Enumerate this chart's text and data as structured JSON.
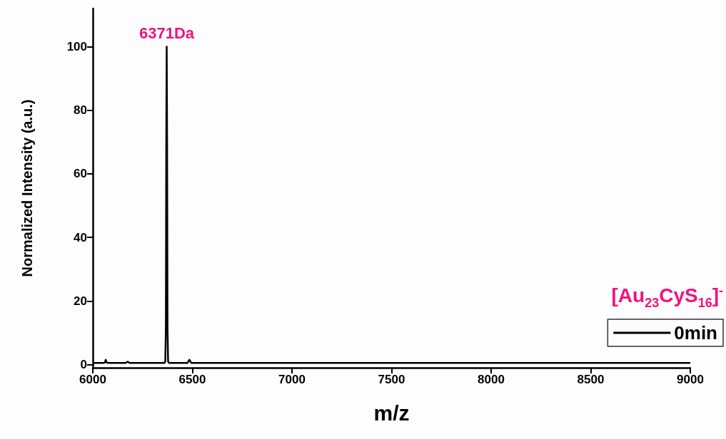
{
  "chart_data": {
    "type": "line",
    "xlabel": "m/z",
    "ylabel": "Normalized Intensity (a.u.)",
    "legend_title": "[Au$_{23}$CyS$_{16}$]$^{-}$",
    "xlim": [
      6000,
      9000
    ],
    "xticks": [
      6000,
      6500,
      7000,
      7500,
      8000,
      8500,
      9000
    ],
    "ylim": [
      -1,
      112
    ],
    "yticks": [
      0,
      20,
      40,
      60,
      80,
      100
    ],
    "x": [
      6000,
      6050,
      6060,
      6065,
      6070,
      6080,
      6165,
      6175,
      6185,
      6300,
      6360,
      6364,
      6367,
      6369,
      6371,
      6373,
      6375,
      6378,
      6382,
      6400,
      6475,
      6485,
      6495,
      6600,
      7000,
      7500,
      8000,
      8500,
      9000
    ],
    "series": [
      {
        "name": "0min",
        "color": "#000000",
        "values": [
          0.5,
          0.5,
          0.6,
          1.5,
          0.6,
          0.5,
          0.5,
          0.9,
          0.5,
          0.5,
          0.5,
          1,
          12,
          72,
          100,
          72,
          12,
          1,
          0.5,
          0.5,
          0.5,
          1.5,
          0.5,
          0.5,
          0.5,
          0.5,
          0.5,
          0.5,
          0.5
        ]
      }
    ],
    "annotations": [
      {
        "text": "6371Da",
        "x": 6371,
        "y": 100
      }
    ],
    "legend": "bottom right",
    "marker": "none",
    "line_style": "solid",
    "grid": false
  }
}
